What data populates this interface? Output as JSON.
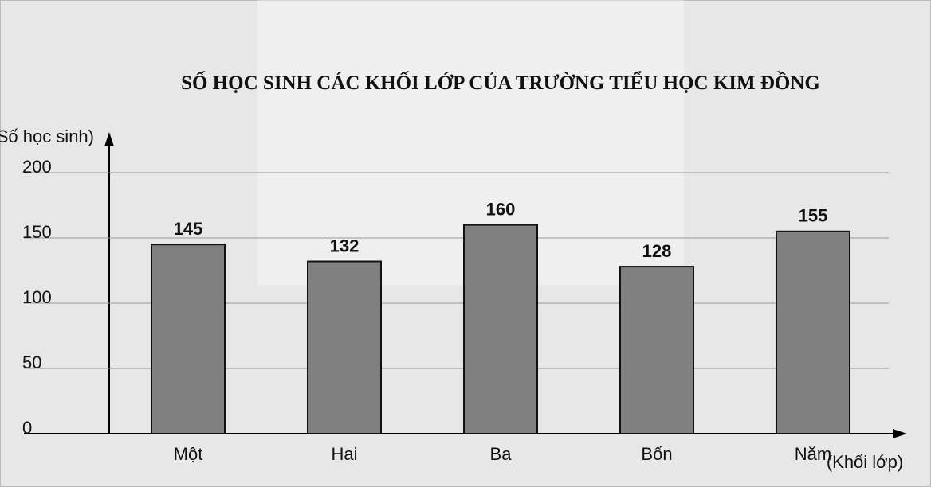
{
  "chart_data": {
    "type": "bar",
    "title": "SỐ HỌC SINH CÁC KHỐI LỚP CỦA TRƯỜNG TIỂU HỌC KIM ĐỒNG",
    "y_label": "(Số học sinh)",
    "x_label": "(Khối lớp)",
    "categories": [
      "Một",
      "Hai",
      "Ba",
      "Bốn",
      "Năm"
    ],
    "values": [
      145,
      132,
      160,
      128,
      155
    ],
    "color": "#808080",
    "ylim": [
      0,
      200
    ],
    "yticks": [
      0,
      50,
      100,
      150,
      200
    ],
    "grid": true
  }
}
